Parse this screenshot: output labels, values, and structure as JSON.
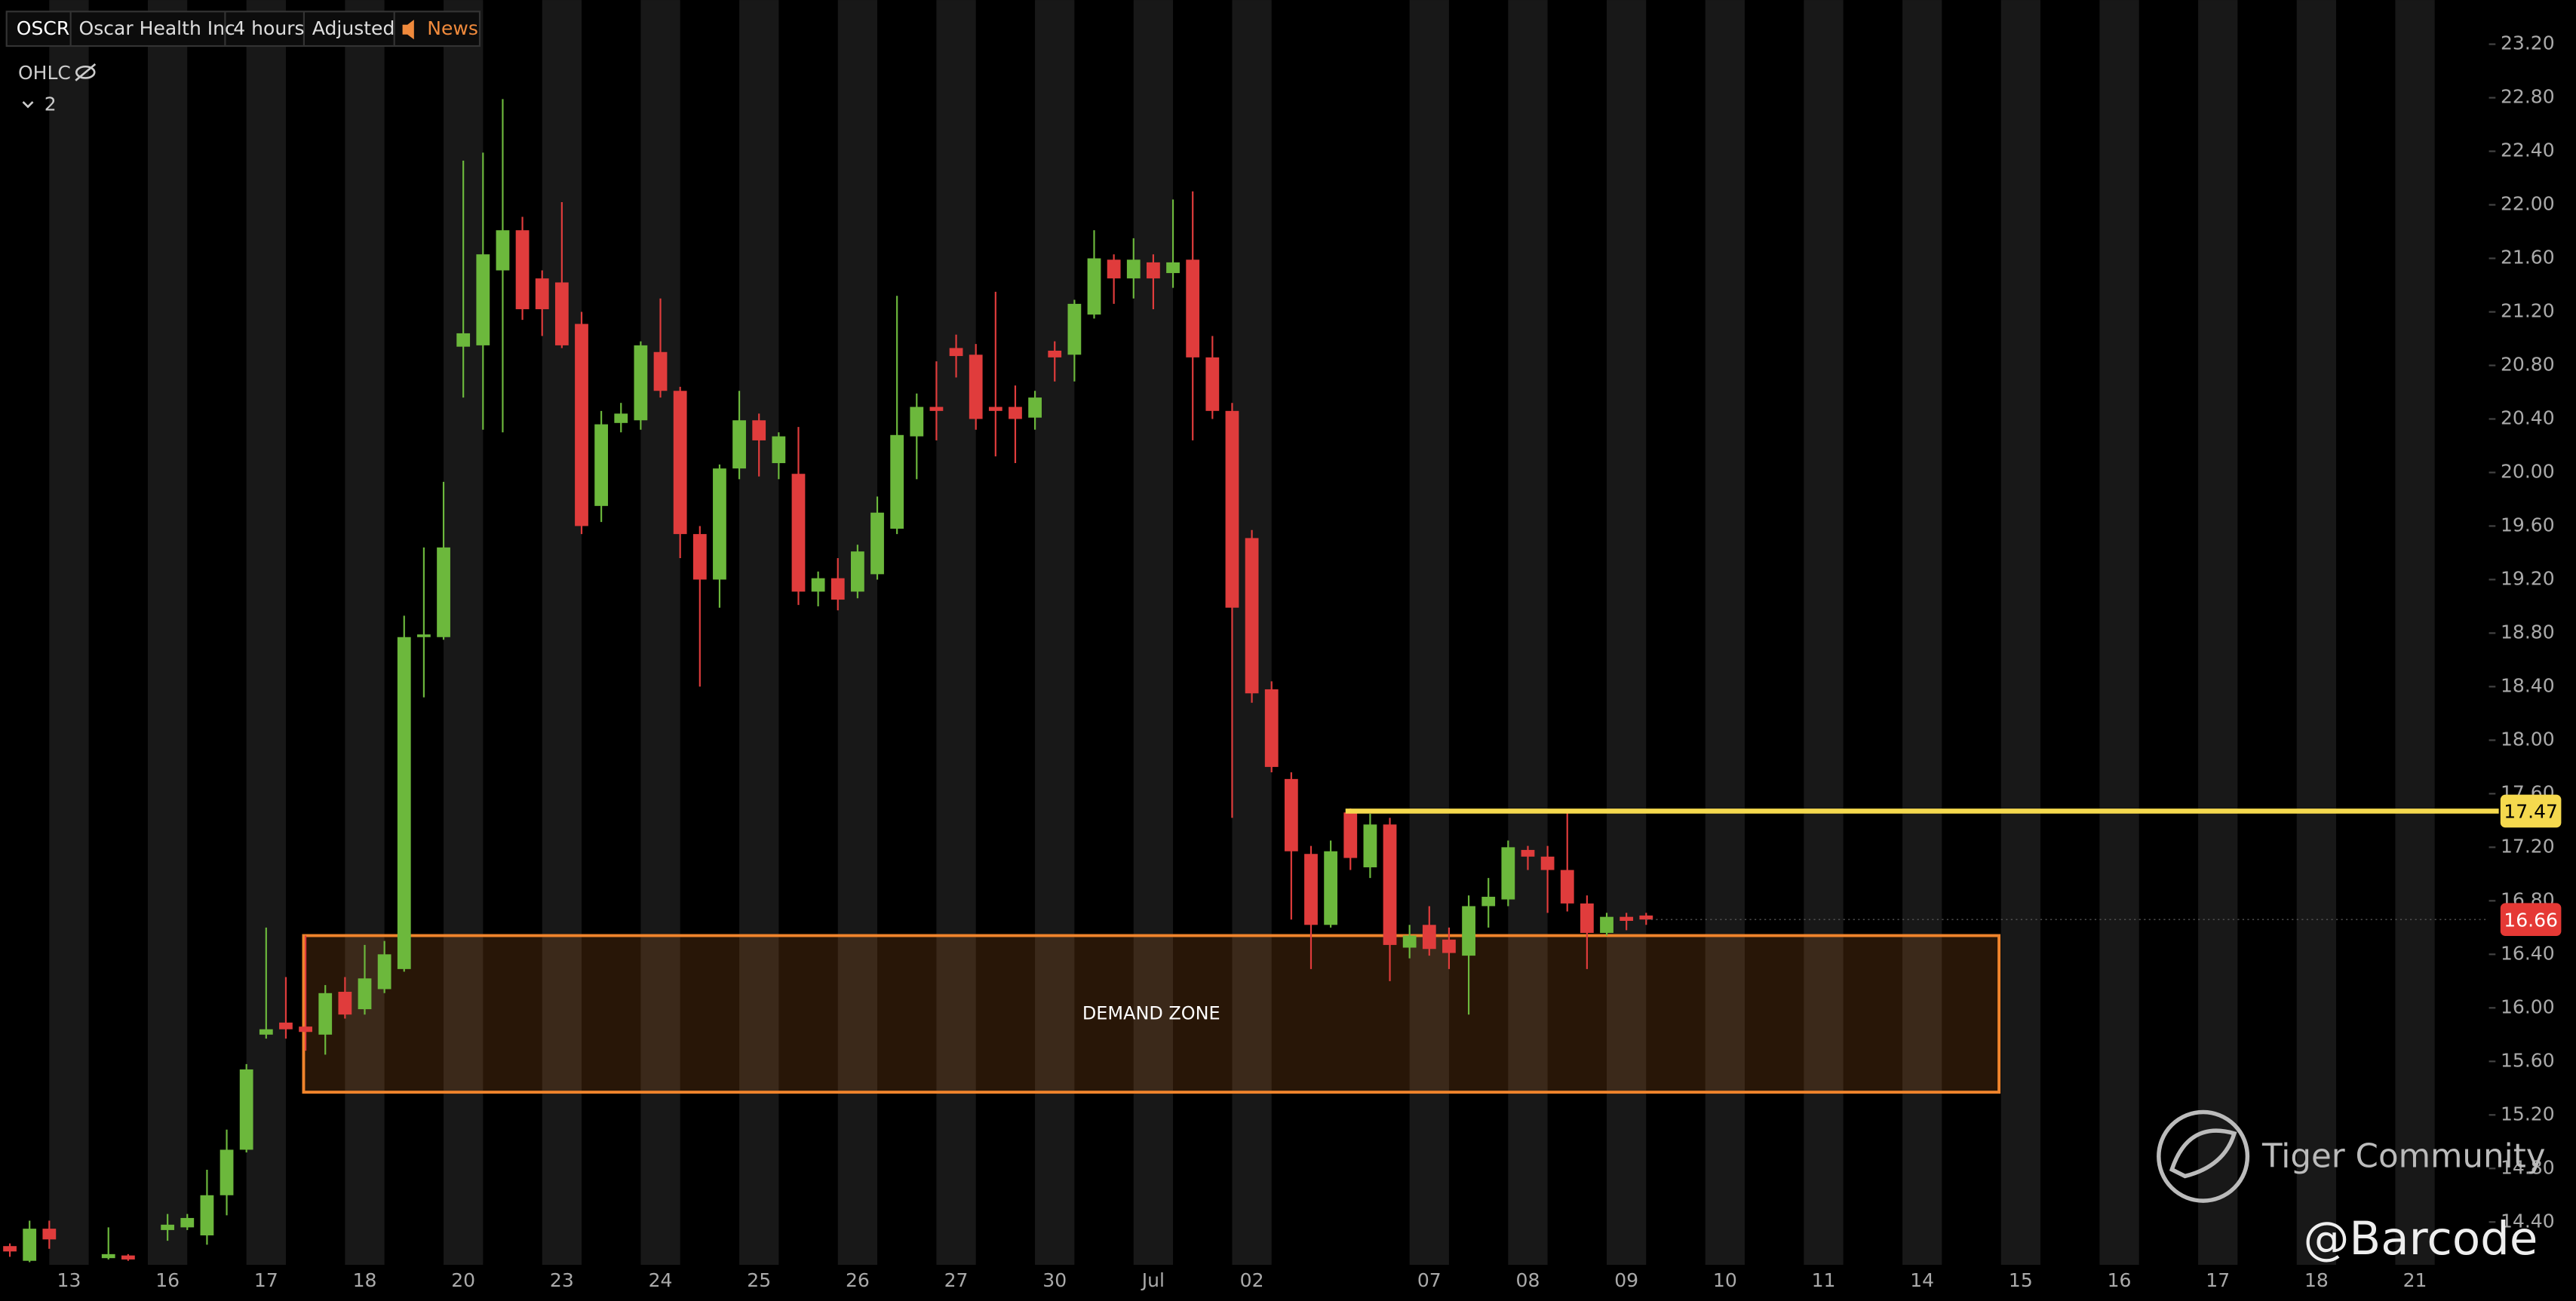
{
  "toolbar": {
    "symbol": "OSCR",
    "name": "Oscar Health Inc",
    "interval": "4 hours",
    "adjustment": "Adjusted",
    "news": "News"
  },
  "indicator": {
    "label": "OHLC",
    "count": 2
  },
  "watermark": {
    "brand": "Tiger Community",
    "author": "@Barcode"
  },
  "chart_data": {
    "type": "candlestick",
    "up_color": "#6cb83c",
    "down_color": "#e03c3c",
    "x": [
      0,
      1,
      2,
      5,
      6,
      8,
      9,
      10,
      11,
      12,
      13,
      14,
      15,
      16,
      17,
      18,
      19,
      20,
      21,
      22,
      23,
      24,
      25,
      26,
      27,
      28,
      29,
      30,
      31,
      32,
      33,
      34,
      35,
      36,
      37,
      38,
      39,
      40,
      41,
      42,
      43,
      44,
      45,
      46,
      47,
      48,
      49,
      50,
      51,
      52,
      53,
      54,
      55,
      56,
      57,
      58,
      59,
      60,
      61,
      62,
      63,
      64,
      65,
      66,
      67,
      68,
      69,
      70,
      71,
      72,
      73,
      74,
      75,
      76,
      77,
      78,
      79,
      80,
      81,
      82,
      83
    ],
    "open": [
      14.22,
      14.11,
      14.35,
      14.13,
      14.15,
      14.34,
      14.36,
      14.3,
      14.6,
      14.94,
      15.8,
      15.89,
      15.86,
      15.8,
      16.12,
      15.99,
      16.14,
      16.29,
      18.77,
      18.77,
      20.94,
      20.95,
      21.51,
      21.81,
      21.45,
      21.42,
      21.11,
      19.75,
      20.37,
      20.39,
      20.9,
      20.61,
      19.54,
      19.2,
      20.03,
      20.39,
      20.07,
      19.99,
      19.11,
      19.21,
      19.11,
      19.24,
      19.58,
      20.27,
      20.49,
      20.93,
      20.88,
      20.49,
      20.49,
      20.41,
      20.91,
      20.88,
      21.18,
      21.59,
      21.45,
      21.57,
      21.49,
      21.59,
      20.86,
      20.46,
      19.51,
      18.38,
      17.71,
      17.15,
      16.62,
      17.46,
      17.05,
      17.37,
      16.45,
      16.62,
      16.51,
      16.39,
      16.76,
      16.81,
      17.18,
      17.13,
      17.03,
      16.78,
      16.56,
      16.68,
      16.69
    ],
    "high": [
      14.24,
      14.41,
      14.41,
      14.36,
      14.16,
      14.46,
      14.46,
      14.79,
      15.09,
      15.58,
      16.6,
      16.23,
      16.54,
      16.17,
      16.23,
      16.47,
      16.5,
      18.93,
      19.44,
      19.93,
      22.33,
      22.39,
      22.79,
      21.91,
      21.51,
      22.02,
      21.2,
      20.46,
      20.52,
      20.98,
      21.3,
      20.64,
      19.6,
      20.06,
      20.61,
      20.44,
      20.3,
      20.34,
      19.26,
      19.36,
      19.46,
      19.82,
      21.32,
      20.59,
      20.83,
      21.03,
      20.96,
      21.35,
      20.65,
      20.61,
      20.98,
      21.29,
      21.81,
      21.63,
      21.75,
      21.63,
      22.04,
      22.1,
      21.02,
      20.52,
      19.57,
      18.44,
      17.76,
      17.21,
      17.25,
      17.49,
      17.45,
      17.42,
      16.62,
      16.76,
      16.6,
      16.84,
      16.97,
      17.25,
      17.21,
      17.21,
      17.46,
      16.84,
      16.71,
      16.71,
      16.71
    ],
    "low": [
      14.14,
      14.1,
      14.2,
      14.12,
      14.11,
      14.26,
      14.34,
      14.23,
      14.45,
      14.92,
      15.77,
      15.77,
      15.68,
      15.65,
      15.92,
      15.95,
      16.11,
      16.27,
      18.32,
      18.75,
      20.56,
      20.32,
      20.3,
      21.14,
      21.02,
      20.93,
      19.54,
      19.63,
      20.3,
      20.32,
      20.56,
      19.36,
      18.4,
      18.99,
      19.95,
      19.97,
      19.95,
      19.01,
      19.0,
      18.97,
      19.06,
      19.2,
      19.54,
      19.95,
      20.24,
      20.71,
      20.32,
      20.12,
      20.07,
      20.32,
      20.68,
      20.68,
      21.15,
      21.26,
      21.3,
      21.22,
      21.38,
      20.24,
      20.4,
      17.42,
      18.28,
      17.76,
      16.66,
      16.29,
      16.6,
      17.03,
      16.97,
      16.2,
      16.37,
      16.39,
      16.29,
      15.95,
      16.6,
      16.76,
      17.03,
      16.71,
      16.72,
      16.29,
      16.54,
      16.58,
      16.62
    ],
    "close": [
      14.18,
      14.35,
      14.27,
      14.16,
      14.12,
      14.38,
      14.43,
      14.6,
      14.94,
      15.54,
      15.84,
      15.84,
      15.82,
      16.11,
      15.95,
      16.22,
      16.4,
      18.77,
      18.79,
      19.44,
      21.04,
      21.63,
      21.81,
      21.22,
      21.22,
      20.95,
      19.6,
      20.36,
      20.44,
      20.95,
      20.61,
      19.54,
      19.2,
      20.03,
      20.39,
      20.24,
      20.27,
      19.11,
      19.21,
      19.05,
      19.41,
      19.7,
      20.28,
      20.49,
      20.46,
      20.87,
      20.4,
      20.46,
      20.4,
      20.56,
      20.86,
      21.26,
      21.6,
      21.45,
      21.59,
      21.45,
      21.57,
      20.86,
      20.46,
      18.99,
      18.35,
      17.8,
      17.17,
      16.62,
      17.17,
      17.12,
      17.37,
      16.47,
      16.54,
      16.44,
      16.41,
      16.76,
      16.83,
      17.2,
      17.13,
      17.03,
      16.78,
      16.56,
      16.68,
      16.65,
      16.66
    ],
    "xlim": [
      -0.5,
      125.75
    ],
    "ylim": [
      14.08,
      23.53
    ],
    "xticks": [
      {
        "value": 3,
        "label": "13"
      },
      {
        "value": 8,
        "label": "16"
      },
      {
        "value": 13,
        "label": "17"
      },
      {
        "value": 18,
        "label": "18"
      },
      {
        "value": 23,
        "label": "20"
      },
      {
        "value": 28,
        "label": "23"
      },
      {
        "value": 33,
        "label": "24"
      },
      {
        "value": 38,
        "label": "25"
      },
      {
        "value": 43,
        "label": "26"
      },
      {
        "value": 48,
        "label": "27"
      },
      {
        "value": 53,
        "label": "30"
      },
      {
        "value": 58,
        "label": "Jul"
      },
      {
        "value": 63,
        "label": "02"
      },
      {
        "value": 72,
        "label": "07"
      },
      {
        "value": 77,
        "label": "08"
      },
      {
        "value": 82,
        "label": "09"
      },
      {
        "value": 87,
        "label": "10"
      },
      {
        "value": 92,
        "label": "11"
      },
      {
        "value": 97,
        "label": "14"
      },
      {
        "value": 102,
        "label": "15"
      },
      {
        "value": 107,
        "label": "16"
      },
      {
        "value": 112,
        "label": "17"
      },
      {
        "value": 117,
        "label": "18"
      },
      {
        "value": 122,
        "label": "21"
      }
    ],
    "yticks": [
      {
        "value": 23.2,
        "label": "23.20"
      },
      {
        "value": 22.8,
        "label": "22.80"
      },
      {
        "value": 22.4,
        "label": "22.40"
      },
      {
        "value": 22.0,
        "label": "22.00"
      },
      {
        "value": 21.6,
        "label": "21.60"
      },
      {
        "value": 21.2,
        "label": "21.20"
      },
      {
        "value": 20.8,
        "label": "20.80"
      },
      {
        "value": 20.4,
        "label": "20.40"
      },
      {
        "value": 20.0,
        "label": "20.00"
      },
      {
        "value": 19.6,
        "label": "19.60"
      },
      {
        "value": 19.2,
        "label": "19.20"
      },
      {
        "value": 18.8,
        "label": "18.80"
      },
      {
        "value": 18.4,
        "label": "18.40"
      },
      {
        "value": 18.0,
        "label": "18.00"
      },
      {
        "value": 17.6,
        "label": "17.60"
      },
      {
        "value": 17.2,
        "label": "17.20"
      },
      {
        "value": 16.8,
        "label": "16.80"
      },
      {
        "value": 16.4,
        "label": "16.40"
      },
      {
        "value": 16.0,
        "label": "16.00"
      },
      {
        "value": 15.6,
        "label": "15.60"
      },
      {
        "value": 15.2,
        "label": "15.20"
      },
      {
        "value": 14.8,
        "label": "14.80"
      },
      {
        "value": 14.4,
        "label": "14.40"
      }
    ],
    "demand_zone": {
      "label": "DEMAND ZONE",
      "x": [
        14.9,
        100.9
      ],
      "y": [
        15.37,
        16.54
      ],
      "color": "#f0842c"
    },
    "level_line": {
      "value": 17.47,
      "x_start": 67.75,
      "color": "#f5d94e"
    },
    "last_price": {
      "value": 16.66,
      "color": "#e53935"
    }
  }
}
